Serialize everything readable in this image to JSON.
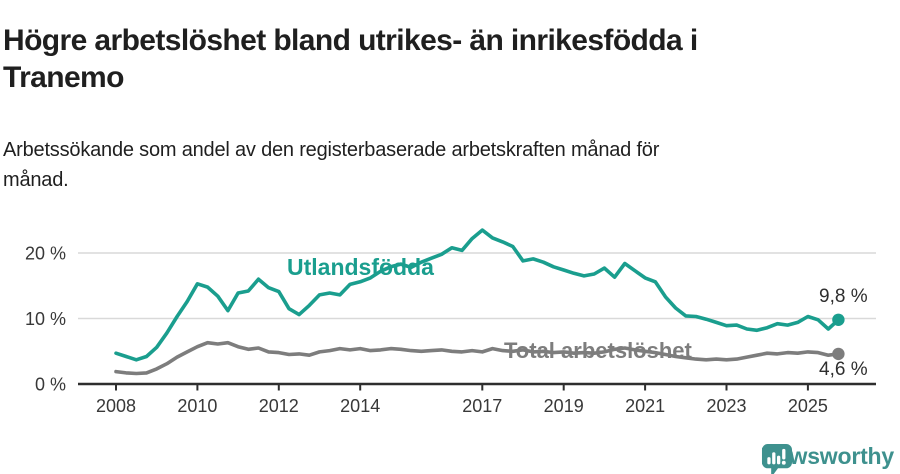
{
  "header": {
    "title_lines": [
      "Högre arbetslöshet bland utrikes- än inrikesfödda i",
      "Tranemo"
    ],
    "subtitle_lines": [
      "Arbetssökande som andel av den registerbaserade arbetskraften månad för",
      "månad."
    ]
  },
  "footer": {
    "brand": "Newsworthy",
    "logo_icon": "speech-bubble-bar-chart-icon"
  },
  "colors": {
    "teal": "#1a9e8e",
    "gray": "#7d7d7d",
    "axis": "#2e2e2e",
    "grid": "#d9d9d9",
    "label_text": "#2e2e2e",
    "brand_teal": "#3e918e"
  },
  "chart_data": {
    "type": "line",
    "title": "Högre arbetslöshet bland utrikes- än inrikesfödda i Tranemo",
    "subtitle": "Arbetssökande som andel av den registerbaserade arbetskraften månad för månad.",
    "unit": "%",
    "grid": "horizontal",
    "legend_position": "inline-labels",
    "x_start": 2008.0,
    "x_step": 0.25,
    "x_end": 2025.75,
    "ylim": [
      0,
      24
    ],
    "x_tick_years": [
      2008,
      2010,
      2012,
      2014,
      2017,
      2019,
      2021,
      2023,
      2025
    ],
    "x_tick_labels": [
      "2008",
      "2010",
      "2012",
      "2014",
      "2017",
      "2019",
      "2021",
      "2023",
      "2025"
    ],
    "y_ticks": [
      {
        "value": 0,
        "label": "0 %"
      },
      {
        "value": 10,
        "label": "10 %"
      },
      {
        "value": 20,
        "label": "20 %"
      }
    ],
    "series": [
      {
        "id": "utlandsfodda",
        "name": "Utlandsfödda",
        "color": "#1a9e8e",
        "end_label": "9,8 %",
        "end_value": 9.8,
        "values": [
          4.7,
          4.2,
          3.7,
          4.2,
          5.6,
          7.8,
          10.3,
          12.6,
          15.3,
          14.8,
          13.4,
          11.2,
          13.9,
          14.2,
          16.0,
          14.7,
          14.1,
          11.5,
          10.6,
          12.0,
          13.6,
          13.9,
          13.6,
          15.2,
          15.6,
          16.2,
          17.2,
          17.9,
          18.3,
          17.8,
          18.6,
          19.2,
          19.8,
          20.8,
          20.4,
          22.2,
          23.5,
          22.3,
          21.7,
          21.0,
          18.8,
          19.1,
          18.6,
          17.9,
          17.4,
          16.9,
          16.5,
          16.8,
          17.7,
          16.3,
          18.4,
          17.3,
          16.2,
          15.6,
          13.3,
          11.6,
          10.4,
          10.3,
          9.9,
          9.4,
          8.9,
          9.0,
          8.4,
          8.2,
          8.6,
          9.2,
          9.0,
          9.4,
          10.3,
          9.8,
          8.4,
          9.8
        ]
      },
      {
        "id": "total",
        "name": "Total arbetslöshet",
        "color": "#7d7d7d",
        "end_label": "4,6 %",
        "end_value": 4.6,
        "values": [
          1.9,
          1.7,
          1.6,
          1.7,
          2.3,
          3.1,
          4.1,
          4.9,
          5.7,
          6.3,
          6.1,
          6.3,
          5.7,
          5.3,
          5.5,
          4.9,
          4.8,
          4.5,
          4.6,
          4.4,
          4.9,
          5.1,
          5.4,
          5.2,
          5.4,
          5.1,
          5.2,
          5.4,
          5.3,
          5.1,
          5.0,
          5.1,
          5.2,
          5.0,
          4.9,
          5.1,
          4.9,
          5.4,
          5.1,
          5.0,
          5.2,
          4.9,
          5.0,
          4.8,
          4.9,
          4.7,
          4.8,
          4.7,
          4.9,
          5.3,
          5.5,
          5.2,
          5.0,
          4.8,
          4.5,
          4.2,
          4.0,
          3.8,
          3.7,
          3.8,
          3.7,
          3.8,
          4.1,
          4.4,
          4.7,
          4.6,
          4.8,
          4.7,
          4.9,
          4.8,
          4.4,
          4.6
        ]
      }
    ]
  }
}
